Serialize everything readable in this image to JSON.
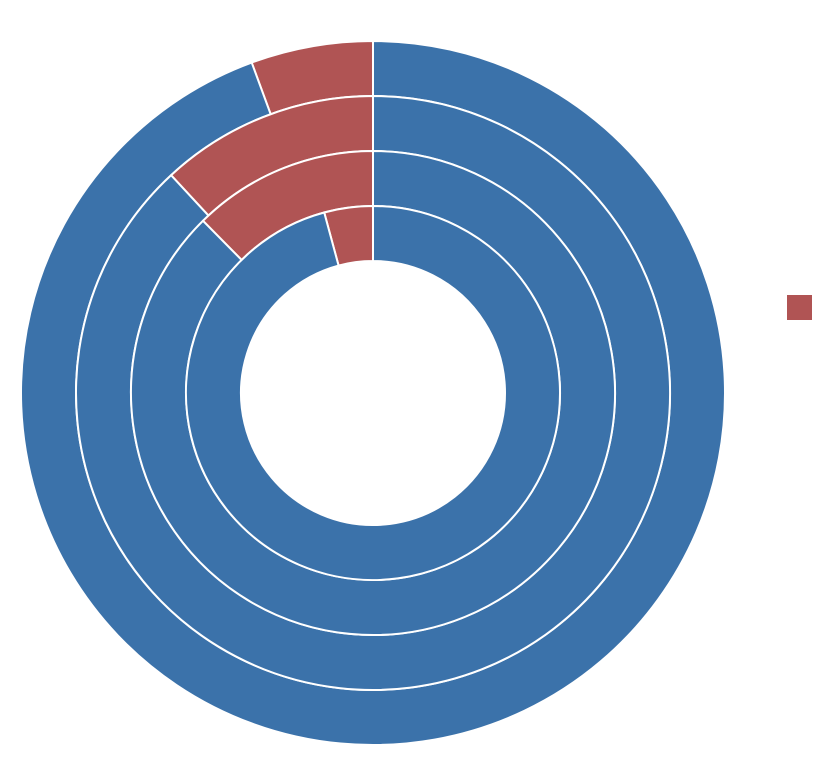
{
  "chart_data": {
    "type": "donut",
    "categories": [
      null,
      null
    ],
    "colors": [
      "#b05454",
      "#3b72aa"
    ],
    "series": [
      {
        "values": [
          5.6,
          94.4
        ]
      },
      {
        "values": [
          11.9,
          88.1
        ]
      },
      {
        "values": [
          12.4,
          87.6
        ]
      },
      {
        "values": [
          4.2,
          95.8
        ]
      }
    ],
    "legend": "right"
  }
}
